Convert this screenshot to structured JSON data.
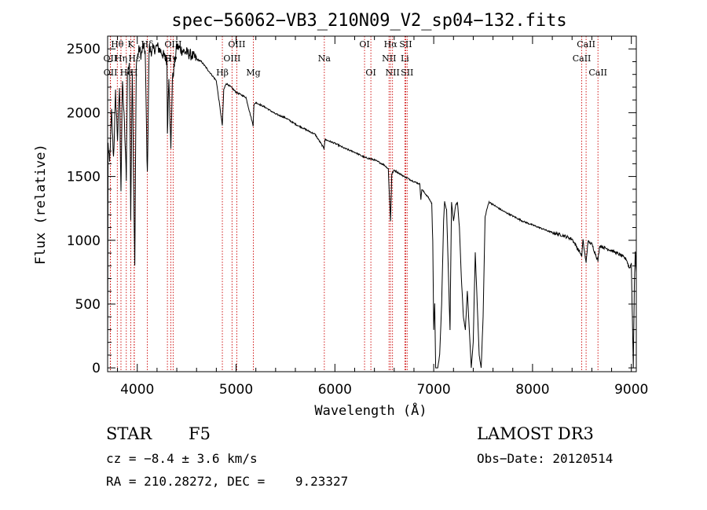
{
  "chart_data": {
    "type": "line",
    "title": "spec−56062−VB3_210N09_V2_sp04−132.fits",
    "xlabel": "Wavelength (Å)",
    "ylabel": "Flux (relative)",
    "xlim": [
      3700,
      9050
    ],
    "ylim": [
      -30,
      2600
    ],
    "xticks": [
      4000,
      5000,
      6000,
      7000,
      8000,
      9000
    ],
    "yticks": [
      0,
      500,
      1000,
      1500,
      2000,
      2500
    ],
    "colors": {
      "spectrum": "#000000",
      "lines": "#cc0000"
    },
    "spectrum_anchors": [
      [
        3700,
        50
      ],
      [
        3705,
        1750
      ],
      [
        3720,
        1600
      ],
      [
        3740,
        2000
      ],
      [
        3760,
        1650
      ],
      [
        3780,
        2150
      ],
      [
        3800,
        1800
      ],
      [
        3820,
        2200
      ],
      [
        3835,
        1400
      ],
      [
        3850,
        2250
      ],
      [
        3870,
        1900
      ],
      [
        3889,
        1500
      ],
      [
        3900,
        2300
      ],
      [
        3920,
        2400
      ],
      [
        3934,
        1200
      ],
      [
        3950,
        2350
      ],
      [
        3968,
        1150
      ],
      [
        3975,
        800
      ],
      [
        3990,
        2400
      ],
      [
        4020,
        2500
      ],
      [
        4040,
        2450
      ],
      [
        4060,
        2520
      ],
      [
        4080,
        2480
      ],
      [
        4102,
        1500
      ],
      [
        4120,
        2500
      ],
      [
        4150,
        2480
      ],
      [
        4200,
        2520
      ],
      [
        4250,
        2470
      ],
      [
        4300,
        2400
      ],
      [
        4305,
        1850
      ],
      [
        4320,
        2300
      ],
      [
        4340,
        1700
      ],
      [
        4355,
        2250
      ],
      [
        4400,
        2520
      ],
      [
        4450,
        2490
      ],
      [
        4500,
        2470
      ],
      [
        4550,
        2450
      ],
      [
        4600,
        2420
      ],
      [
        4650,
        2400
      ],
      [
        4700,
        2350
      ],
      [
        4750,
        2300
      ],
      [
        4800,
        2250
      ],
      [
        4861,
        1900
      ],
      [
        4875,
        2180
      ],
      [
        4900,
        2230
      ],
      [
        4950,
        2200
      ],
      [
        5000,
        2160
      ],
      [
        5100,
        2120
      ],
      [
        5172,
        1900
      ],
      [
        5180,
        2060
      ],
      [
        5200,
        2080
      ],
      [
        5300,
        2040
      ],
      [
        5400,
        1990
      ],
      [
        5500,
        1960
      ],
      [
        5600,
        1910
      ],
      [
        5700,
        1870
      ],
      [
        5800,
        1830
      ],
      [
        5890,
        1720
      ],
      [
        5900,
        1790
      ],
      [
        6000,
        1760
      ],
      [
        6100,
        1720
      ],
      [
        6200,
        1690
      ],
      [
        6300,
        1650
      ],
      [
        6400,
        1630
      ],
      [
        6500,
        1590
      ],
      [
        6540,
        1560
      ],
      [
        6563,
        1150
      ],
      [
        6575,
        1520
      ],
      [
        6600,
        1550
      ],
      [
        6700,
        1500
      ],
      [
        6800,
        1460
      ],
      [
        6860,
        1440
      ],
      [
        6870,
        1320
      ],
      [
        6880,
        1400
      ],
      [
        6900,
        1380
      ],
      [
        6950,
        1330
      ],
      [
        6980,
        1290
      ],
      [
        6990,
        1000
      ],
      [
        7000,
        300
      ],
      [
        7010,
        500
      ],
      [
        7020,
        0
      ],
      [
        7040,
        0
      ],
      [
        7060,
        100
      ],
      [
        7080,
        500
      ],
      [
        7100,
        1150
      ],
      [
        7110,
        1300
      ],
      [
        7130,
        1240
      ],
      [
        7150,
        700
      ],
      [
        7165,
        300
      ],
      [
        7180,
        1300
      ],
      [
        7200,
        1150
      ],
      [
        7220,
        1270
      ],
      [
        7240,
        1300
      ],
      [
        7260,
        1100
      ],
      [
        7280,
        700
      ],
      [
        7300,
        400
      ],
      [
        7320,
        300
      ],
      [
        7340,
        600
      ],
      [
        7360,
        300
      ],
      [
        7380,
        0
      ],
      [
        7400,
        200
      ],
      [
        7420,
        900
      ],
      [
        7440,
        500
      ],
      [
        7460,
        100
      ],
      [
        7480,
        0
      ],
      [
        7500,
        400
      ],
      [
        7520,
        1180
      ],
      [
        7540,
        1250
      ],
      [
        7560,
        1300
      ],
      [
        7600,
        1280
      ],
      [
        7700,
        1230
      ],
      [
        7800,
        1190
      ],
      [
        7900,
        1150
      ],
      [
        8000,
        1120
      ],
      [
        8100,
        1090
      ],
      [
        8200,
        1060
      ],
      [
        8300,
        1040
      ],
      [
        8400,
        1010
      ],
      [
        8498,
        880
      ],
      [
        8510,
        1000
      ],
      [
        8542,
        820
      ],
      [
        8560,
        990
      ],
      [
        8600,
        970
      ],
      [
        8662,
        840
      ],
      [
        8680,
        960
      ],
      [
        8700,
        950
      ],
      [
        8800,
        920
      ],
      [
        8900,
        880
      ],
      [
        8950,
        850
      ],
      [
        8980,
        780
      ],
      [
        9000,
        820
      ],
      [
        9010,
        400
      ],
      [
        9020,
        0
      ],
      [
        9030,
        650
      ],
      [
        9040,
        900
      ],
      [
        9050,
        750
      ]
    ],
    "line_markers": [
      {
        "label": "Hθ",
        "x": 3798,
        "row": 0
      },
      {
        "label": "OII",
        "x": 3727,
        "row": 1
      },
      {
        "label": "OII",
        "x": 3729,
        "row": 2
      },
      {
        "label": "K",
        "x": 3934,
        "row": 0
      },
      {
        "label": "Hη",
        "x": 3835,
        "row": 1
      },
      {
        "label": "Hε",
        "x": 3970,
        "row": 1
      },
      {
        "label": "He",
        "x": 3889,
        "row": 2
      },
      {
        "label": "H",
        "x": 3968,
        "row": 2
      },
      {
        "label": "Hδ",
        "x": 4102,
        "row": 0
      },
      {
        "label": "G",
        "x": 4305,
        "row": 1
      },
      {
        "label": "OIII",
        "x": 4363,
        "row": 0
      },
      {
        "label": "Hγ",
        "x": 4340,
        "row": 1
      },
      {
        "label": "Hβ",
        "x": 4861,
        "row": 3
      },
      {
        "label": "OIII",
        "x": 4959,
        "row": 1
      },
      {
        "label": "OIII",
        "x": 5007,
        "row": 0
      },
      {
        "label": "Mg",
        "x": 5175,
        "row": 2
      },
      {
        "label": "Na",
        "x": 5893,
        "row": 1
      },
      {
        "label": "OI",
        "x": 6300,
        "row": 0
      },
      {
        "label": "OI",
        "x": 6364,
        "row": 2
      },
      {
        "label": "Hα",
        "x": 6563,
        "row": 0
      },
      {
        "label": "NII",
        "x": 6548,
        "row": 1
      },
      {
        "label": "NII",
        "x": 6583,
        "row": 2
      },
      {
        "label": "Li",
        "x": 6708,
        "row": 1
      },
      {
        "label": "SII",
        "x": 6717,
        "row": 0
      },
      {
        "label": "SII",
        "x": 6731,
        "row": 2
      },
      {
        "label": "CaII",
        "x": 8542,
        "row": 0
      },
      {
        "label": "CaII",
        "x": 8498,
        "row": 1
      },
      {
        "label": "CaII",
        "x": 8662,
        "row": 2
      }
    ]
  },
  "info": {
    "object_type": "STAR",
    "subclass": "F5",
    "survey": "LAMOST DR3",
    "cz": "cz = −8.4 ± 3.6 km/s",
    "obs_date": "Obs−Date: 20120514",
    "coords": "RA = 210.28272, DEC =    9.23327"
  }
}
